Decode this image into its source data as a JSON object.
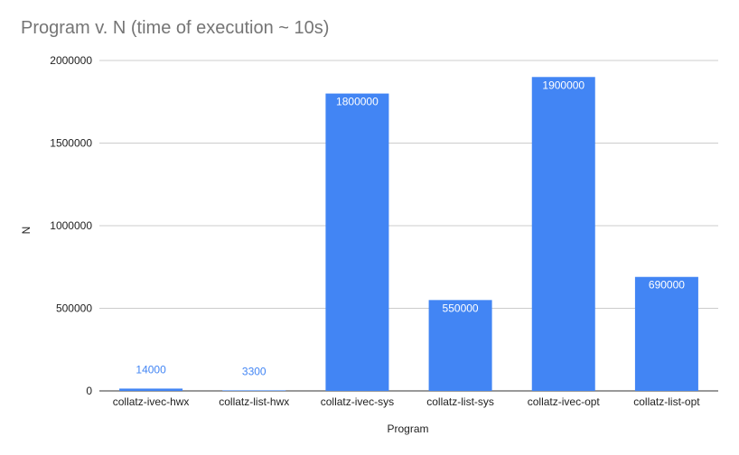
{
  "chart_data": {
    "type": "bar",
    "title": "Program v. N (time of execution ~ 10s)",
    "xlabel": "Program",
    "ylabel": "N",
    "categories": [
      "collatz-ivec-hwx",
      "collatz-list-hwx",
      "collatz-ivec-sys",
      "collatz-list-sys",
      "collatz-ivec-opt",
      "collatz-list-opt"
    ],
    "values": [
      14000,
      3300,
      1800000,
      550000,
      1900000,
      690000
    ],
    "data_labels": [
      "14000",
      "3300",
      "1800000",
      "550000",
      "1900000",
      "690000"
    ],
    "ylim": [
      0,
      2000000
    ],
    "yticks": [
      0,
      500000,
      1000000,
      1500000,
      2000000
    ],
    "ytick_labels": [
      "0",
      "500000",
      "1000000",
      "1500000",
      "2000000"
    ],
    "grid": true,
    "legend": "none",
    "colors": {
      "bar": "#4285f4",
      "label_inside": "#ffffff",
      "label_outside": "#4285f4",
      "grid": "#cccccc",
      "axis_text": "#222222",
      "title": "#757575"
    }
  }
}
